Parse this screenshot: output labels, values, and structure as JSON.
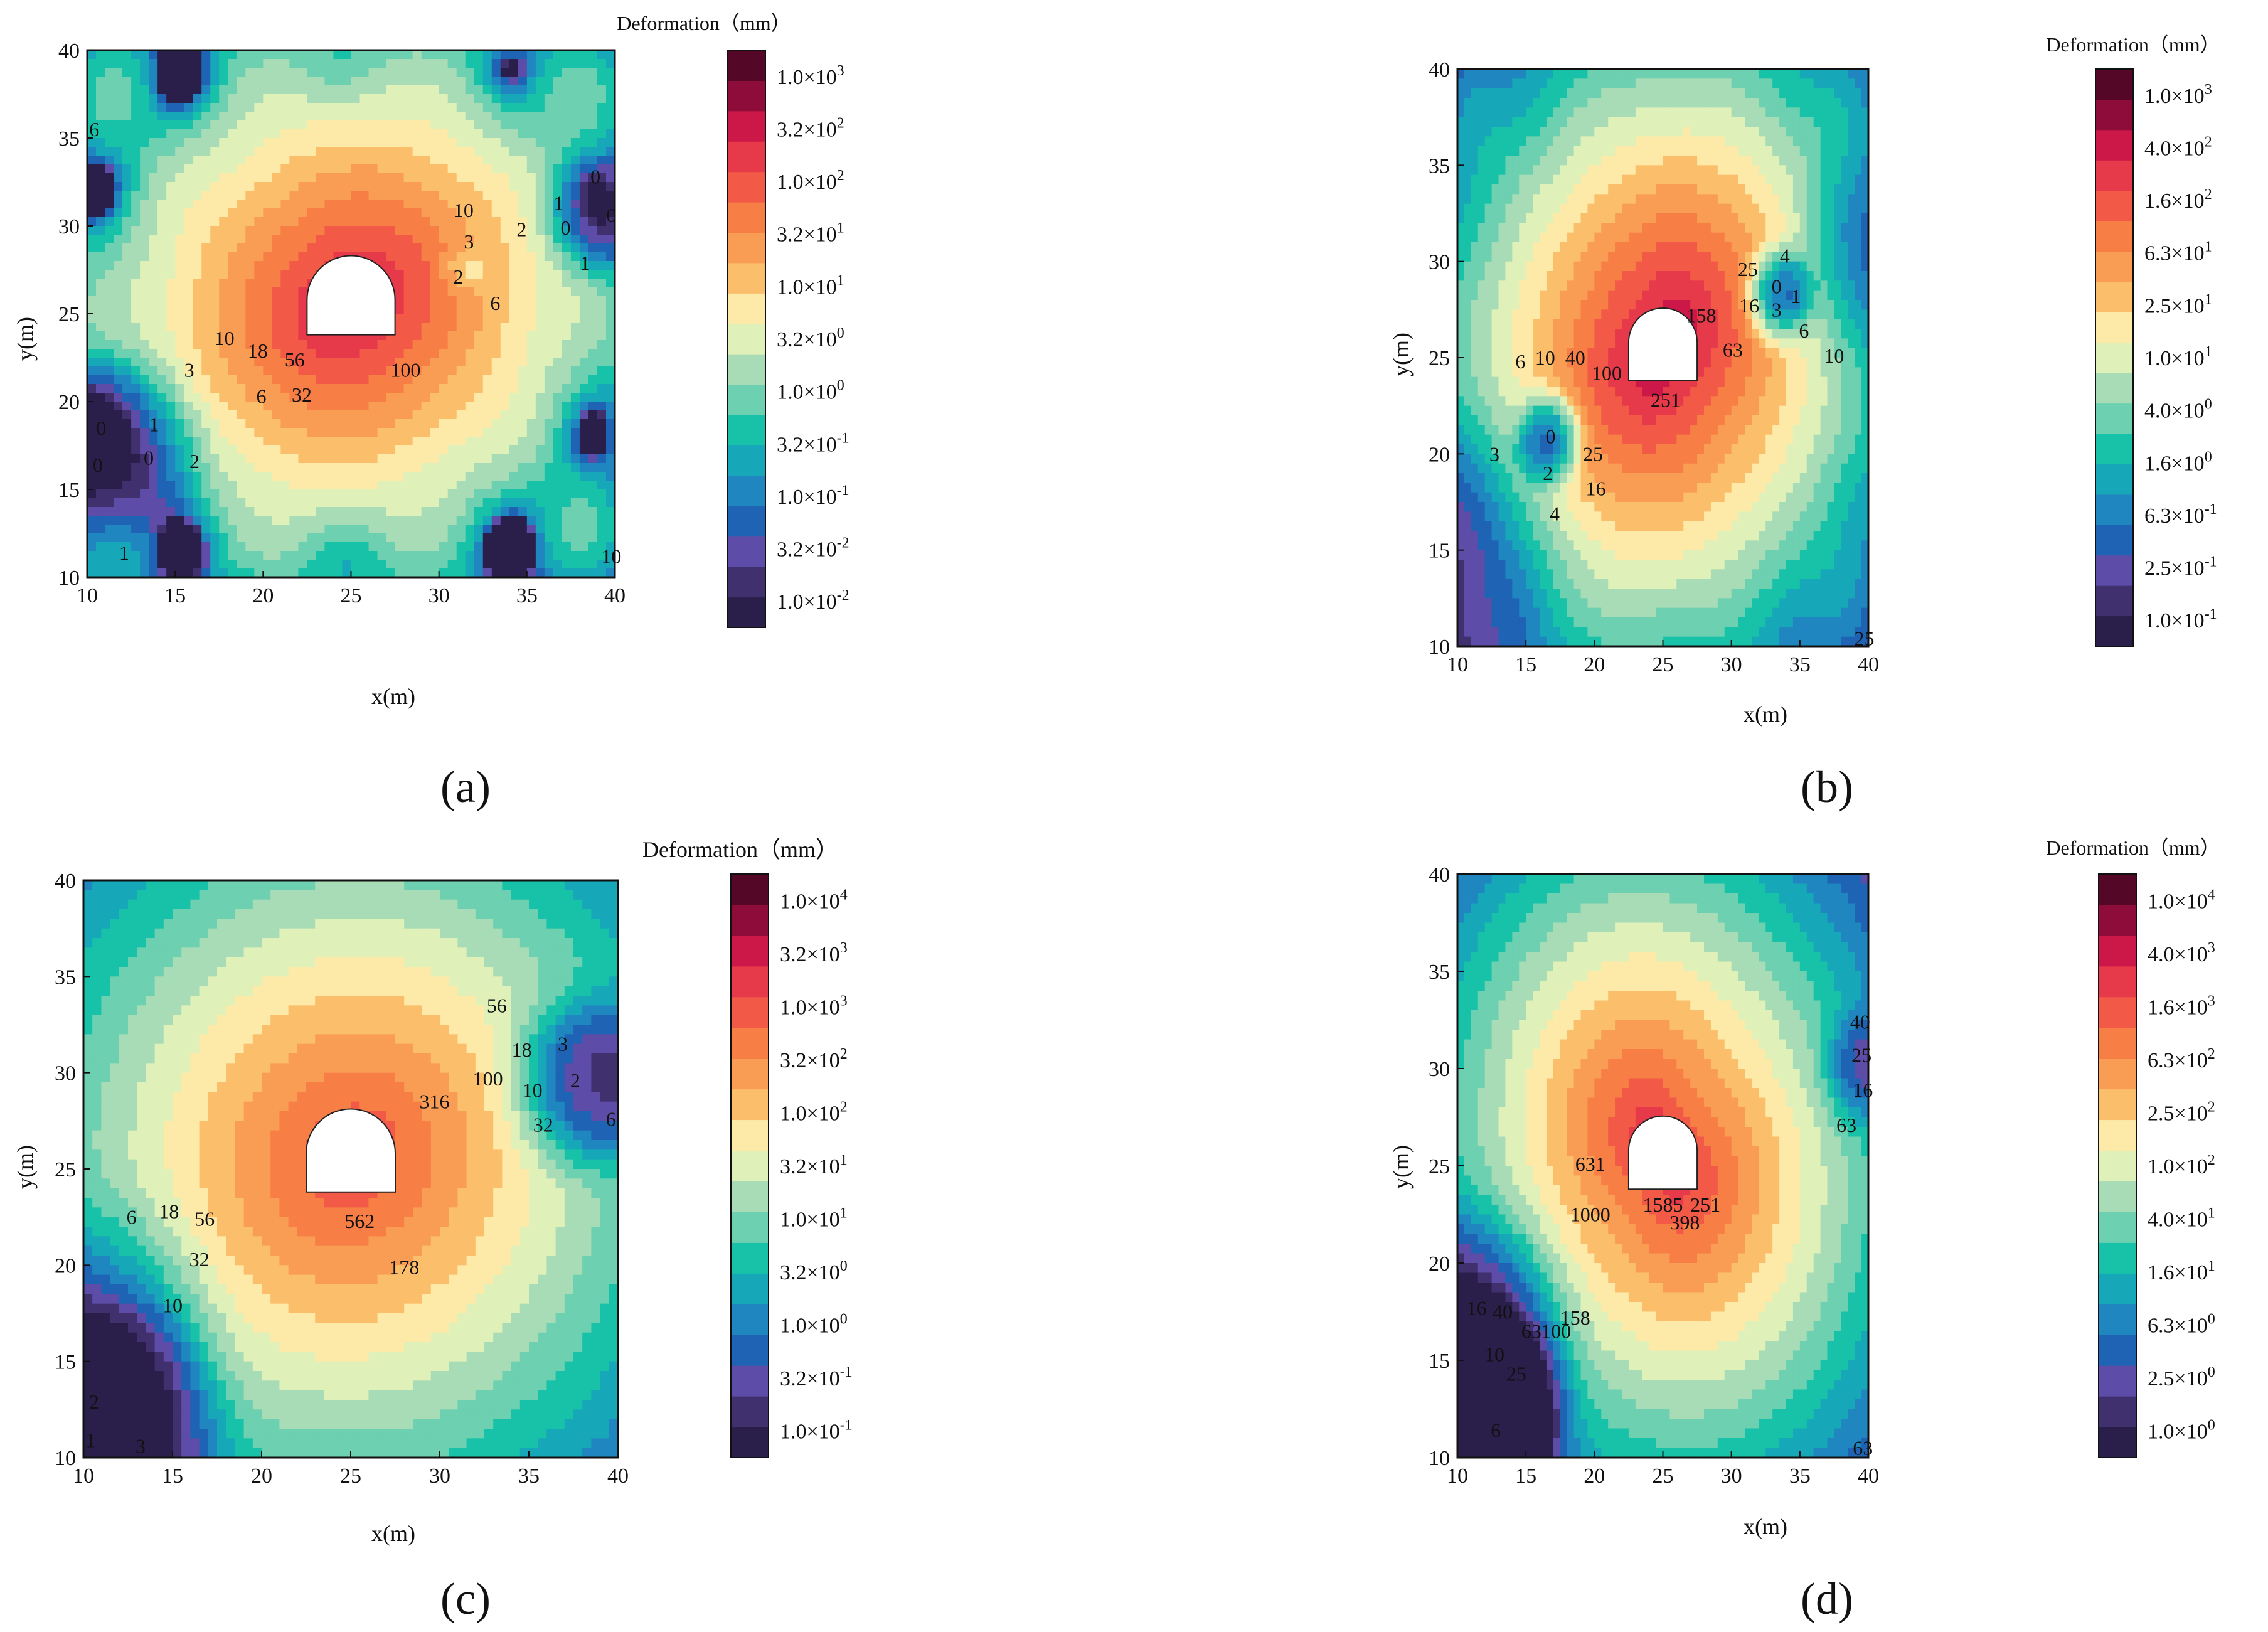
{
  "figure": {
    "background": "#ffffff"
  },
  "palette": [
    "#2a1f4a",
    "#40306e",
    "#5e4da8",
    "#1e63b4",
    "#1f86c0",
    "#16a8b8",
    "#17c2a8",
    "#6dd0b0",
    "#a8dcb6",
    "#dff0b8",
    "#fde9a8",
    "#fbbf6c",
    "#f99d55",
    "#f77e44",
    "#f25a47",
    "#e63a4a",
    "#cc1848",
    "#8e0c3a",
    "#540726"
  ],
  "chart_data": [
    {
      "panel": "(a)",
      "type": "heatmap",
      "subtype": "filled-contour",
      "xlabel": "x(m)",
      "ylabel": "y(m)",
      "xlim": [
        10,
        40
      ],
      "ylim": [
        10,
        40
      ],
      "xticks": [
        "10",
        "15",
        "20",
        "25",
        "30",
        "35",
        "40"
      ],
      "yticks": [
        "10",
        "15",
        "20",
        "25",
        "30",
        "35",
        "40"
      ],
      "colorbar": {
        "title": "Deformation（mm）",
        "labels": [
          [
            "1.0×10",
            "-2"
          ],
          [
            "3.2×10",
            "-2"
          ],
          [
            "1.0×10",
            "-1"
          ],
          [
            "3.2×10",
            "-1"
          ],
          [
            "1.0×10",
            "0"
          ],
          [
            "3.2×10",
            "0"
          ],
          [
            "1.0×10",
            "1"
          ],
          [
            "3.2×10",
            "1"
          ],
          [
            "1.0×10",
            "2"
          ],
          [
            "3.2×10",
            "2"
          ],
          [
            "1.0×10",
            "3"
          ]
        ]
      },
      "field": {
        "peak": 300,
        "decay": 0.4,
        "cross": 0.16,
        "bias": 0.7,
        "lows": [
          {
            "x": 11,
            "y": 17,
            "a": 50,
            "r": 3
          },
          {
            "x": 39.5,
            "y": 30.5,
            "a": 22,
            "r": 2
          },
          {
            "x": 31.5,
            "y": 27.5,
            "a": 2,
            "r": 1
          }
        ]
      },
      "tunnel": {
        "x_left": 22.5,
        "x_right": 27.5,
        "y_floor": 23.8,
        "spring": 25.8
      },
      "contour_labels": [
        {
          "text": "6",
          "x": 10.4,
          "y": 35.5
        },
        {
          "text": "10",
          "x": 31.4,
          "y": 30.9
        },
        {
          "text": "3",
          "x": 31.7,
          "y": 29.1
        },
        {
          "text": "2",
          "x": 31.1,
          "y": 27.1
        },
        {
          "text": "6",
          "x": 33.2,
          "y": 25.6
        },
        {
          "text": "2",
          "x": 34.7,
          "y": 29.8
        },
        {
          "text": "1",
          "x": 36.8,
          "y": 31.3
        },
        {
          "text": "0",
          "x": 37.2,
          "y": 29.9
        },
        {
          "text": "1",
          "x": 38.3,
          "y": 27.9
        },
        {
          "text": "0",
          "x": 38.9,
          "y": 32.8
        },
        {
          "text": "0",
          "x": 39.8,
          "y": 30.6
        },
        {
          "text": "10",
          "x": 17.8,
          "y": 23.6
        },
        {
          "text": "18",
          "x": 19.7,
          "y": 22.9
        },
        {
          "text": "56",
          "x": 21.8,
          "y": 22.4
        },
        {
          "text": "32",
          "x": 22.2,
          "y": 20.4
        },
        {
          "text": "100",
          "x": 28.1,
          "y": 21.8
        },
        {
          "text": "3",
          "x": 15.8,
          "y": 21.8
        },
        {
          "text": "6",
          "x": 19.9,
          "y": 20.3
        },
        {
          "text": "1",
          "x": 13.8,
          "y": 18.7
        },
        {
          "text": "0",
          "x": 10.8,
          "y": 18.5
        },
        {
          "text": "0",
          "x": 13.5,
          "y": 16.8
        },
        {
          "text": "2",
          "x": 16.1,
          "y": 16.6
        },
        {
          "text": "0",
          "x": 10.6,
          "y": 16.4
        },
        {
          "text": "1",
          "x": 12.1,
          "y": 11.4
        },
        {
          "text": "10",
          "x": 39.8,
          "y": 11.2
        }
      ]
    },
    {
      "panel": "(b)",
      "type": "heatmap",
      "subtype": "filled-contour",
      "xlabel": "x(m)",
      "ylabel": "y(m)",
      "xlim": [
        10,
        40
      ],
      "ylim": [
        10,
        40
      ],
      "xticks": [
        "10",
        "15",
        "20",
        "25",
        "30",
        "35",
        "40"
      ],
      "yticks": [
        "10",
        "15",
        "20",
        "25",
        "30",
        "35",
        "40"
      ],
      "colorbar": {
        "title": "Deformation（mm）",
        "labels": [
          [
            "1.0×10",
            "-1"
          ],
          [
            "2.5×10",
            "-1"
          ],
          [
            "6.3×10",
            "-1"
          ],
          [
            "1.6×10",
            "0"
          ],
          [
            "4.0×10",
            "0"
          ],
          [
            "1.0×10",
            "1"
          ],
          [
            "2.5×10",
            "1"
          ],
          [
            "6.3×10",
            "1"
          ],
          [
            "1.6×10",
            "2"
          ],
          [
            "4.0×10",
            "2"
          ],
          [
            "1.0×10",
            "3"
          ]
        ]
      },
      "field": {
        "peak": 500,
        "decay": 0.33,
        "cross": 0.2,
        "bias": 0.45,
        "lows": [
          {
            "x": 16.7,
            "y": 20.8,
            "a": 30,
            "r": 1.4
          },
          {
            "x": 33.5,
            "y": 28.3,
            "a": 30,
            "r": 1.4
          },
          {
            "x": 10,
            "y": 15,
            "a": 5,
            "r": 5
          },
          {
            "x": 40,
            "y": 30,
            "a": 4,
            "r": 4
          }
        ]
      },
      "tunnel": {
        "x_left": 22.5,
        "x_right": 27.5,
        "y_floor": 23.8,
        "spring": 25.8
      },
      "contour_labels": [
        {
          "text": "4",
          "x": 33.9,
          "y": 30.3
        },
        {
          "text": "25",
          "x": 31.2,
          "y": 29.6
        },
        {
          "text": "0",
          "x": 33.3,
          "y": 28.7
        },
        {
          "text": "1",
          "x": 34.7,
          "y": 28.2
        },
        {
          "text": "16",
          "x": 31.3,
          "y": 27.7
        },
        {
          "text": "3",
          "x": 33.3,
          "y": 27.5
        },
        {
          "text": "158",
          "x": 27.8,
          "y": 27.2
        },
        {
          "text": "6",
          "x": 35.3,
          "y": 26.4
        },
        {
          "text": "63",
          "x": 30.1,
          "y": 25.4
        },
        {
          "text": "10",
          "x": 37.5,
          "y": 25.1
        },
        {
          "text": "6",
          "x": 14.6,
          "y": 24.8
        },
        {
          "text": "10",
          "x": 16.4,
          "y": 25.0
        },
        {
          "text": "40",
          "x": 18.6,
          "y": 25.0
        },
        {
          "text": "100",
          "x": 20.9,
          "y": 24.2
        },
        {
          "text": "251",
          "x": 25.2,
          "y": 22.8
        },
        {
          "text": "0",
          "x": 16.8,
          "y": 20.9
        },
        {
          "text": "3",
          "x": 12.7,
          "y": 20.0
        },
        {
          "text": "25",
          "x": 19.9,
          "y": 20.0
        },
        {
          "text": "2",
          "x": 16.6,
          "y": 19.0
        },
        {
          "text": "16",
          "x": 20.1,
          "y": 18.2
        },
        {
          "text": "4",
          "x": 17.1,
          "y": 16.9
        },
        {
          "text": "25",
          "x": 39.7,
          "y": 10.4
        }
      ]
    },
    {
      "panel": "(c)",
      "type": "heatmap",
      "subtype": "filled-contour",
      "xlabel": "x(m)",
      "ylabel": "y(m)",
      "xlim": [
        10,
        40
      ],
      "ylim": [
        10,
        40
      ],
      "xticks": [
        "10",
        "15",
        "20",
        "25",
        "30",
        "35",
        "40"
      ],
      "yticks": [
        "10",
        "15",
        "20",
        "25",
        "30",
        "35",
        "40"
      ],
      "colorbar": {
        "title": "Deformation（mm）",
        "labels": [
          [
            "1.0×10",
            "-1"
          ],
          [
            "3.2×10",
            "-1"
          ],
          [
            "1.0×10",
            "0"
          ],
          [
            "3.2×10",
            "0"
          ],
          [
            "1.0×10",
            "1"
          ],
          [
            "3.2×10",
            "1"
          ],
          [
            "1.0×10",
            "2"
          ],
          [
            "3.2×10",
            "2"
          ],
          [
            "1.0×10",
            "3"
          ],
          [
            "3.2×10",
            "3"
          ],
          [
            "1.0×10",
            "4"
          ]
        ]
      },
      "field": {
        "peak": 1100,
        "decay": 0.31,
        "cross": 0.06,
        "bias": 0.2,
        "lows": [
          {
            "x": 38.5,
            "y": 29.5,
            "a": 45,
            "r": 2.5
          },
          {
            "x": 11,
            "y": 11.5,
            "a": 70,
            "r": 3.5
          },
          {
            "x": 11,
            "y": 17,
            "a": 8,
            "r": 4
          }
        ]
      },
      "tunnel": {
        "x_left": 22.5,
        "x_right": 27.5,
        "y_floor": 23.8,
        "spring": 25.8
      },
      "contour_labels": [
        {
          "text": "56",
          "x": 33.2,
          "y": 33.5
        },
        {
          "text": "18",
          "x": 34.6,
          "y": 31.2
        },
        {
          "text": "3",
          "x": 36.9,
          "y": 31.5
        },
        {
          "text": "2",
          "x": 37.6,
          "y": 29.6
        },
        {
          "text": "10",
          "x": 35.2,
          "y": 29.1
        },
        {
          "text": "100",
          "x": 32.7,
          "y": 29.7
        },
        {
          "text": "316",
          "x": 29.7,
          "y": 28.5
        },
        {
          "text": "32",
          "x": 35.8,
          "y": 27.3
        },
        {
          "text": "6",
          "x": 39.6,
          "y": 27.6
        },
        {
          "text": "562",
          "x": 25.5,
          "y": 22.3
        },
        {
          "text": "178",
          "x": 28.0,
          "y": 19.9
        },
        {
          "text": "6",
          "x": 12.7,
          "y": 22.5
        },
        {
          "text": "18",
          "x": 14.8,
          "y": 22.8
        },
        {
          "text": "56",
          "x": 16.8,
          "y": 22.4
        },
        {
          "text": "32",
          "x": 16.5,
          "y": 20.3
        },
        {
          "text": "10",
          "x": 15.0,
          "y": 17.9
        },
        {
          "text": "2",
          "x": 10.6,
          "y": 12.9
        },
        {
          "text": "3",
          "x": 13.2,
          "y": 10.6
        },
        {
          "text": "1",
          "x": 10.4,
          "y": 10.9
        }
      ]
    },
    {
      "panel": "(d)",
      "type": "heatmap",
      "subtype": "filled-contour",
      "xlabel": "x(m)",
      "ylabel": "y(m)",
      "xlim": [
        10,
        40
      ],
      "ylim": [
        10,
        40
      ],
      "xticks": [
        "10",
        "15",
        "20",
        "25",
        "30",
        "35",
        "40"
      ],
      "yticks": [
        "10",
        "15",
        "20",
        "25",
        "30",
        "35",
        "40"
      ],
      "colorbar": {
        "title": "Deformation（mm）",
        "labels": [
          [
            "1.0×10",
            "0"
          ],
          [
            "2.5×10",
            "0"
          ],
          [
            "6.3×10",
            "0"
          ],
          [
            "1.6×10",
            "1"
          ],
          [
            "4.0×10",
            "1"
          ],
          [
            "1.0×10",
            "2"
          ],
          [
            "2.5×10",
            "2"
          ],
          [
            "6.3×10",
            "2"
          ],
          [
            "1.6×10",
            "3"
          ],
          [
            "4.0×10",
            "3"
          ],
          [
            "1.0×10",
            "4"
          ]
        ]
      },
      "field": {
        "peak": 2600,
        "decay": 0.3,
        "cross": -0.28,
        "bias": 0.15,
        "lows": [
          {
            "x": 12,
            "y": 12,
            "a": 70,
            "r": 3
          },
          {
            "x": 39.5,
            "y": 30,
            "a": 6,
            "r": 2
          },
          {
            "x": 11,
            "y": 16,
            "a": 20,
            "r": 4
          }
        ]
      },
      "tunnel": {
        "x_left": 22.5,
        "x_right": 27.5,
        "y_floor": 23.8,
        "spring": 25.8
      },
      "contour_labels": [
        {
          "text": "40",
          "x": 39.4,
          "y": 32.4
        },
        {
          "text": "25",
          "x": 39.5,
          "y": 30.7
        },
        {
          "text": "16",
          "x": 39.6,
          "y": 28.9
        },
        {
          "text": "63",
          "x": 38.4,
          "y": 27.1
        },
        {
          "text": "631",
          "x": 19.7,
          "y": 25.1
        },
        {
          "text": "1585",
          "x": 25.0,
          "y": 23.0
        },
        {
          "text": "251",
          "x": 28.1,
          "y": 23.0
        },
        {
          "text": "1000",
          "x": 19.7,
          "y": 22.5
        },
        {
          "text": "398",
          "x": 26.6,
          "y": 22.1
        },
        {
          "text": "158",
          "x": 18.6,
          "y": 17.2
        },
        {
          "text": "16",
          "x": 11.4,
          "y": 17.7
        },
        {
          "text": "40",
          "x": 13.3,
          "y": 17.5
        },
        {
          "text": "63",
          "x": 15.4,
          "y": 16.5
        },
        {
          "text": "100",
          "x": 17.2,
          "y": 16.5
        },
        {
          "text": "10",
          "x": 12.7,
          "y": 15.3
        },
        {
          "text": "25",
          "x": 14.3,
          "y": 14.3
        },
        {
          "text": "6",
          "x": 12.8,
          "y": 11.4
        },
        {
          "text": "63",
          "x": 39.6,
          "y": 10.5
        }
      ]
    }
  ]
}
